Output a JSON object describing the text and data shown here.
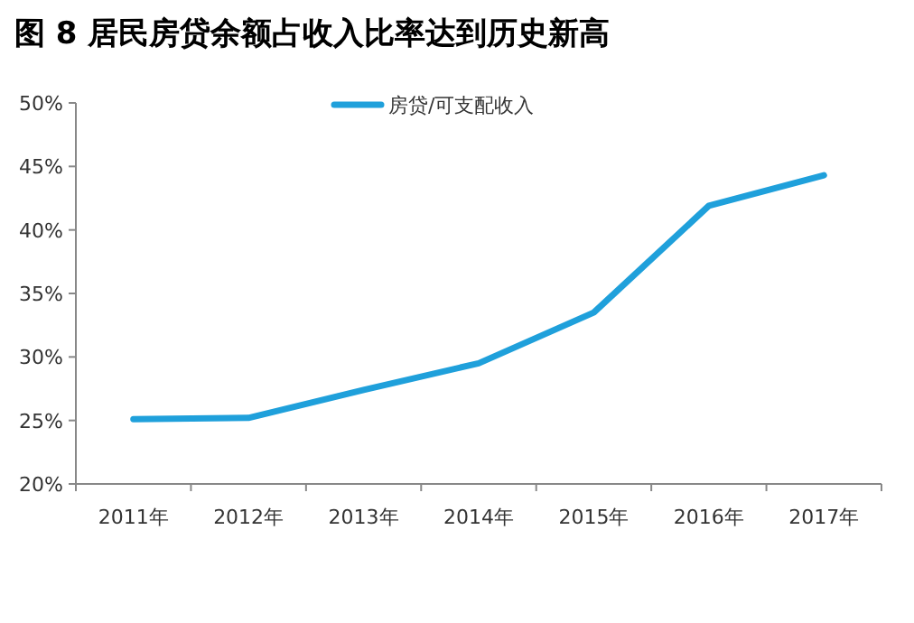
{
  "chart_data": {
    "type": "line",
    "title": "图 8  居民房贷余额占收入比率达到历史新高",
    "categories": [
      "2011年",
      "2012年",
      "2013年",
      "2014年",
      "2015年",
      "2016年",
      "2017年"
    ],
    "series": [
      {
        "name": "房贷/可支配收入",
        "color": "#1fa0db",
        "values": [
          25.1,
          25.2,
          27.4,
          29.5,
          33.5,
          41.9,
          44.3
        ]
      }
    ],
    "ylim": [
      20,
      50
    ],
    "yticks": [
      {
        "value": 20,
        "label": "20%"
      },
      {
        "value": 25,
        "label": "25%"
      },
      {
        "value": 30,
        "label": "30%"
      },
      {
        "value": 35,
        "label": "35%"
      },
      {
        "value": 40,
        "label": "40%"
      },
      {
        "value": 45,
        "label": "45%"
      },
      {
        "value": 50,
        "label": "50%"
      }
    ],
    "legend": "top",
    "grid": false,
    "marker": "none",
    "line_style": "solid"
  }
}
